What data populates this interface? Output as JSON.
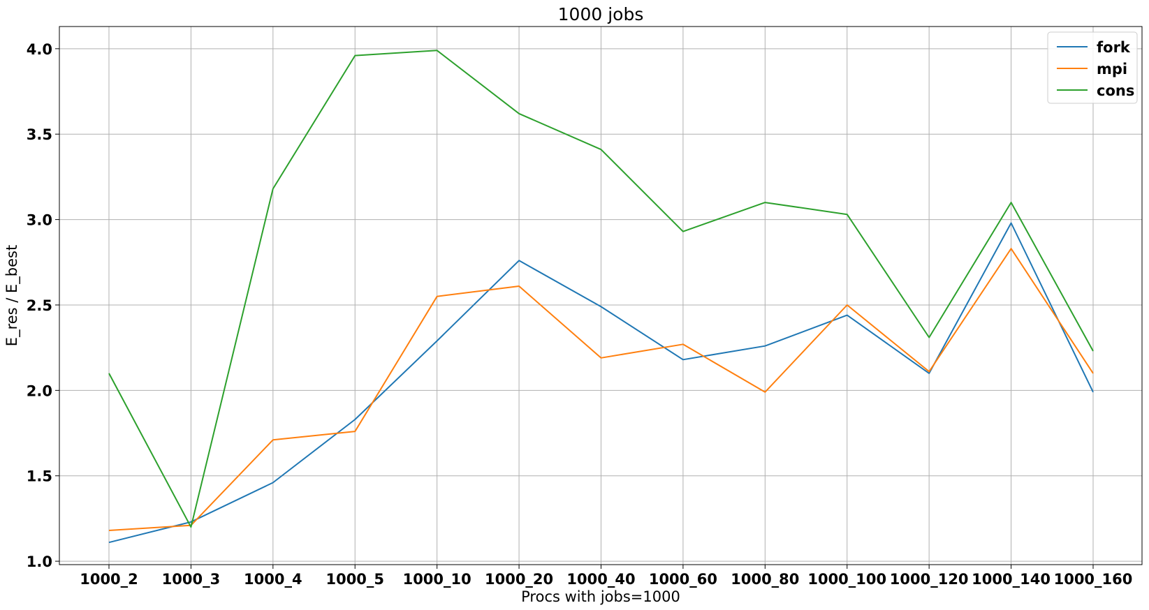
{
  "chart_data": {
    "type": "line",
    "title": "1000 jobs",
    "xlabel": "Procs with jobs=1000",
    "ylabel": "E_res / E_best",
    "categories": [
      "1000_2",
      "1000_3",
      "1000_4",
      "1000_5",
      "1000_10",
      "1000_20",
      "1000_40",
      "1000_60",
      "1000_80",
      "1000_100",
      "1000_120",
      "1000_140",
      "1000_160"
    ],
    "ylim": [
      0.98,
      4.13
    ],
    "yticks": [
      1.0,
      1.5,
      2.0,
      2.5,
      3.0,
      3.5,
      4.0
    ],
    "ytick_labels": [
      "1.0",
      "1.5",
      "2.0",
      "2.5",
      "3.0",
      "3.5",
      "4.0"
    ],
    "grid": true,
    "legend_position": "top-right",
    "series": [
      {
        "name": "fork",
        "color": "#1f77b4",
        "values": [
          1.11,
          1.23,
          1.46,
          1.83,
          2.29,
          2.76,
          2.49,
          2.18,
          2.26,
          2.44,
          2.1,
          2.98,
          1.99
        ]
      },
      {
        "name": "mpi",
        "color": "#ff7f0e",
        "values": [
          1.18,
          1.21,
          1.71,
          1.76,
          2.55,
          2.61,
          2.19,
          2.27,
          1.99,
          2.5,
          2.11,
          2.83,
          2.1
        ]
      },
      {
        "name": "cons",
        "color": "#2ca02c",
        "values": [
          2.1,
          1.2,
          3.18,
          3.96,
          3.99,
          3.62,
          3.41,
          2.93,
          3.1,
          3.03,
          2.31,
          3.1,
          2.23
        ]
      }
    ]
  }
}
